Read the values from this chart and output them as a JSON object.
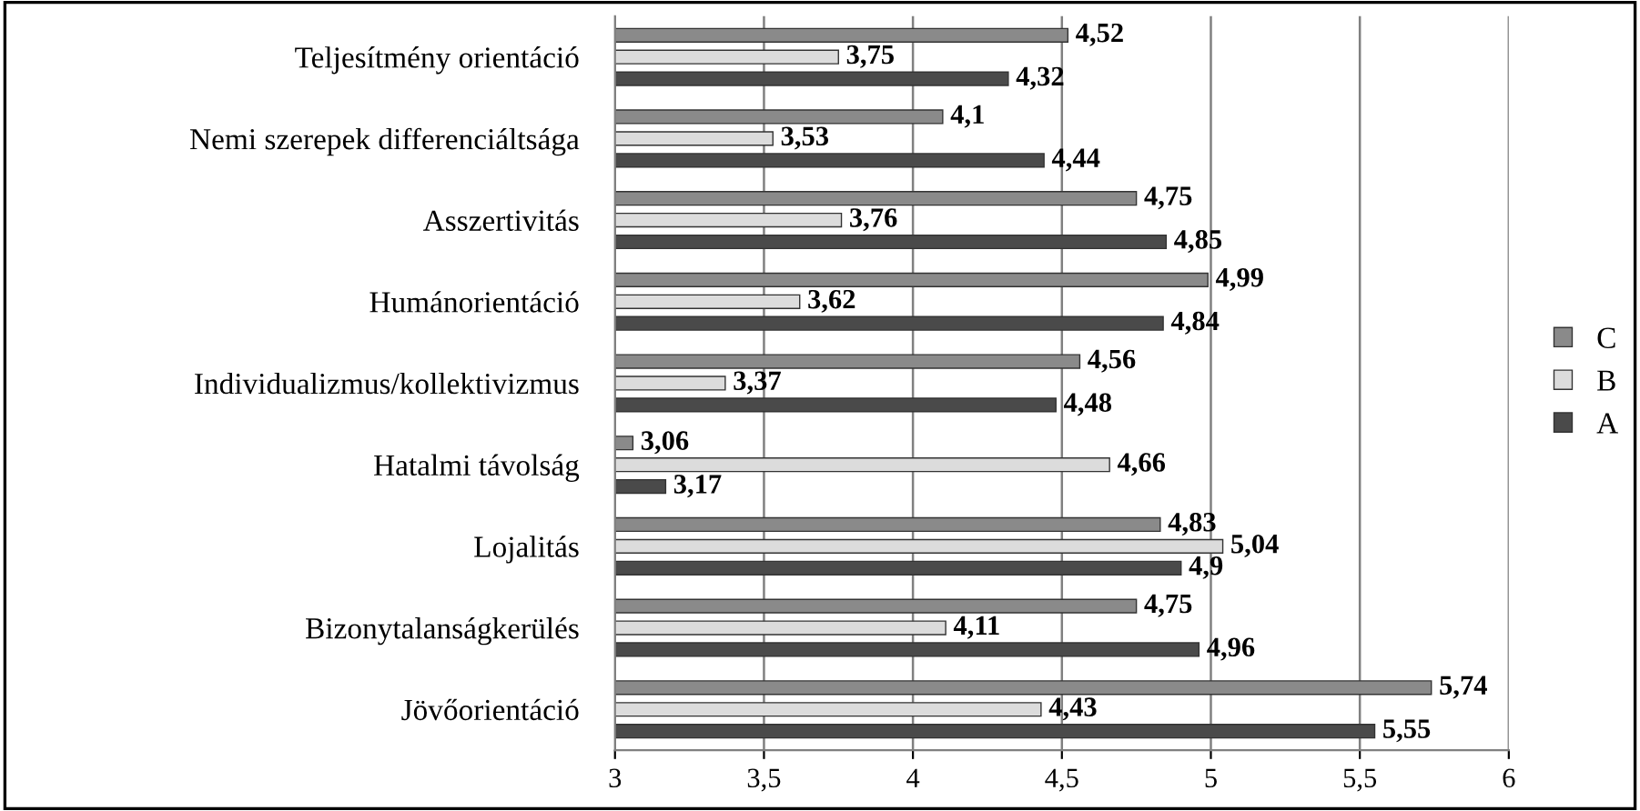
{
  "chart_data": {
    "type": "bar",
    "orientation": "horizontal",
    "categories": [
      "Teljesítmény orientáció",
      "Nemi szerepek differenciáltsága",
      "Asszertivitás",
      "Humánorientáció",
      "Individualizmus/kollektivizmus",
      "Hatalmi távolság",
      "Lojalitás",
      "Bizonytalanságkerülés",
      "Jövőorientáció"
    ],
    "series": [
      {
        "name": "C",
        "color": "#8a8a8a",
        "values": [
          4.52,
          4.1,
          4.75,
          4.99,
          4.56,
          3.06,
          4.83,
          4.75,
          5.74
        ],
        "value_labels": [
          "4,52",
          "4,1",
          "4,75",
          "4,99",
          "4,56",
          "3,06",
          "4,83",
          "4,75",
          "5,74"
        ]
      },
      {
        "name": "B",
        "color": "#dcdcdc",
        "values": [
          3.75,
          3.53,
          3.76,
          3.62,
          3.37,
          4.66,
          5.04,
          4.11,
          4.43
        ],
        "value_labels": [
          "3,75",
          "3,53",
          "3,76",
          "3,62",
          "3,37",
          "4,66",
          "5,04",
          "4,11",
          "4,43"
        ]
      },
      {
        "name": "A",
        "color": "#4a4a4a",
        "values": [
          4.32,
          4.44,
          4.85,
          4.84,
          4.48,
          3.17,
          4.9,
          4.96,
          5.55
        ],
        "value_labels": [
          "4,32",
          "4,44",
          "4,85",
          "4,84",
          "4,48",
          "3,17",
          "4,9",
          "4,96",
          "5,55"
        ]
      }
    ],
    "xlim": [
      3,
      6
    ],
    "xticks": [
      3,
      {
        "value": 3.5,
        "label": "3,5"
      },
      4,
      {
        "value": 4.5,
        "label": "4,5"
      },
      5,
      {
        "value": 5.5,
        "label": "5,5"
      },
      6
    ],
    "grid": "x",
    "legend": "right"
  }
}
